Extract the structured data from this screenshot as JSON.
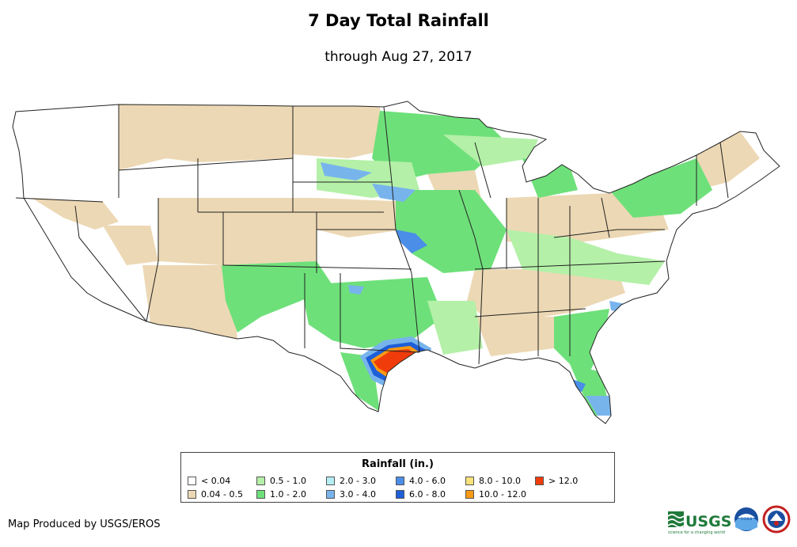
{
  "title": "7 Day Total Rainfall",
  "subtitle": "through Aug 27, 2017",
  "legend": {
    "title": "Rainfall (in.)",
    "items": [
      {
        "label": "< 0.04",
        "color": "#ffffff"
      },
      {
        "label": "0.04 - 0.5",
        "color": "#ecd8b4"
      },
      {
        "label": "0.5 - 1.0",
        "color": "#b4f0a8"
      },
      {
        "label": "1.0 - 2.0",
        "color": "#6ee07a"
      },
      {
        "label": "2.0 - 3.0",
        "color": "#b4eef4"
      },
      {
        "label": "3.0 - 4.0",
        "color": "#78b4ec"
      },
      {
        "label": "4.0 - 6.0",
        "color": "#4a8ee8"
      },
      {
        "label": "6.0 - 8.0",
        "color": "#1e5ed8"
      },
      {
        "label": "8.0 - 10.0",
        "color": "#fae27a"
      },
      {
        "label": "10.0 - 12.0",
        "color": "#fa9a14"
      },
      {
        "label": "> 12.0",
        "color": "#f03c0a"
      }
    ]
  },
  "credit": "Map Produced by USGS/EROS",
  "logos": {
    "usgs_wordmark": "USGS",
    "usgs_tagline": "science for a changing world",
    "noaa_label": "noaa",
    "nws_icon": "nws-seal-icon"
  }
}
